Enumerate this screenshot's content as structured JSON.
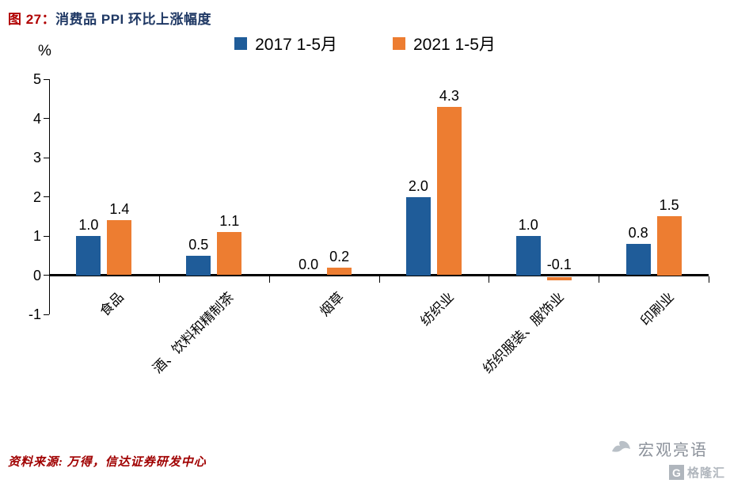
{
  "title": {
    "prefix": "图  27：",
    "text": "消费品 PPI 环比上涨幅度"
  },
  "y_axis": {
    "unit_label": "%",
    "ticks": [
      5,
      4,
      3,
      2,
      1,
      0,
      -1
    ]
  },
  "chart_data": {
    "type": "bar",
    "title": "消费品 PPI 环比上涨幅度",
    "ylabel": "%",
    "ylim": [
      -1,
      5
    ],
    "grid": false,
    "legend_position": "top",
    "data_labels": true,
    "categories": [
      "食品",
      "酒、饮料和精制茶",
      "烟草",
      "纺织业",
      "纺织服装、服饰业",
      "印刷业"
    ],
    "series": [
      {
        "name": "2017 1-5月",
        "color": "#1F5C99",
        "values": [
          1.0,
          0.5,
          0.0,
          2.0,
          1.0,
          0.8
        ]
      },
      {
        "name": "2021 1-5月",
        "color": "#ED7D31",
        "values": [
          1.4,
          1.1,
          0.2,
          4.3,
          -0.1,
          1.5
        ]
      }
    ]
  },
  "footer": {
    "source": "资料来源: 万得，信达证券研发中心"
  },
  "watermark": {
    "name": "宏观亮语",
    "logo_letter": "G",
    "logo_text": "格隆汇"
  }
}
